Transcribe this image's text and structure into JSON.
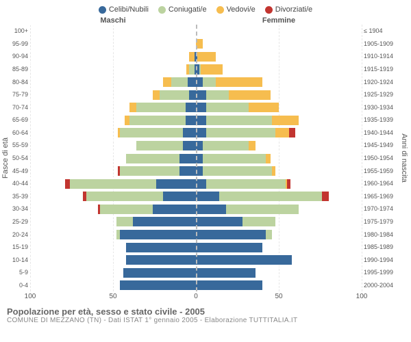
{
  "legend": {
    "items": [
      {
        "label": "Celibi/Nubili",
        "color": "#38699b"
      },
      {
        "label": "Coniugati/e",
        "color": "#bcd3a0"
      },
      {
        "label": "Vedovi/e",
        "color": "#f6bd4f"
      },
      {
        "label": "Divorziati/e",
        "color": "#c23530"
      }
    ]
  },
  "headers": {
    "male": "Maschi",
    "female": "Femmine"
  },
  "axis_labels": {
    "left": "Fasce di età",
    "right": "Anni di nascita"
  },
  "x_axis": {
    "max": 100,
    "ticks": [
      100,
      50,
      0,
      50,
      100
    ]
  },
  "footer": {
    "title": "Popolazione per età, sesso e stato civile - 2005",
    "subtitle": "COMUNE DI MEZZANO (TN) - Dati ISTAT 1° gennaio 2005 - Elaborazione TUTTITALIA.IT"
  },
  "colors": {
    "single": "#38699b",
    "married": "#bcd3a0",
    "widowed": "#f6bd4f",
    "divorced": "#c23530",
    "grid": "#e5e5e5",
    "centerline": "#bbbbbb",
    "background": "#ffffff"
  },
  "chart": {
    "type": "population-pyramid",
    "rows": [
      {
        "age": "100+",
        "year": "≤ 1904",
        "m": {
          "s": 0,
          "m": 0,
          "w": 0,
          "d": 0
        },
        "f": {
          "s": 0,
          "m": 0,
          "w": 0,
          "d": 0
        }
      },
      {
        "age": "95-99",
        "year": "1905-1909",
        "m": {
          "s": 0,
          "m": 0,
          "w": 0,
          "d": 0
        },
        "f": {
          "s": 0,
          "m": 0,
          "w": 4,
          "d": 0
        }
      },
      {
        "age": "90-94",
        "year": "1910-1914",
        "m": {
          "s": 1,
          "m": 0,
          "w": 3,
          "d": 0
        },
        "f": {
          "s": 1,
          "m": 0,
          "w": 11,
          "d": 0
        }
      },
      {
        "age": "85-89",
        "year": "1915-1919",
        "m": {
          "s": 1,
          "m": 3,
          "w": 2,
          "d": 0
        },
        "f": {
          "s": 2,
          "m": 1,
          "w": 13,
          "d": 0
        }
      },
      {
        "age": "80-84",
        "year": "1920-1924",
        "m": {
          "s": 5,
          "m": 10,
          "w": 5,
          "d": 0
        },
        "f": {
          "s": 4,
          "m": 8,
          "w": 28,
          "d": 0
        }
      },
      {
        "age": "75-79",
        "year": "1925-1929",
        "m": {
          "s": 4,
          "m": 18,
          "w": 4,
          "d": 0
        },
        "f": {
          "s": 6,
          "m": 14,
          "w": 25,
          "d": 0
        }
      },
      {
        "age": "70-74",
        "year": "1930-1934",
        "m": {
          "s": 6,
          "m": 30,
          "w": 4,
          "d": 0
        },
        "f": {
          "s": 6,
          "m": 26,
          "w": 18,
          "d": 0
        }
      },
      {
        "age": "65-69",
        "year": "1935-1939",
        "m": {
          "s": 6,
          "m": 34,
          "w": 3,
          "d": 0
        },
        "f": {
          "s": 6,
          "m": 40,
          "w": 16,
          "d": 0
        }
      },
      {
        "age": "60-64",
        "year": "1940-1944",
        "m": {
          "s": 8,
          "m": 38,
          "w": 1,
          "d": 0
        },
        "f": {
          "s": 6,
          "m": 42,
          "w": 8,
          "d": 4
        }
      },
      {
        "age": "55-59",
        "year": "1945-1949",
        "m": {
          "s": 8,
          "m": 28,
          "w": 0,
          "d": 0
        },
        "f": {
          "s": 4,
          "m": 28,
          "w": 4,
          "d": 0
        }
      },
      {
        "age": "50-54",
        "year": "1950-1954",
        "m": {
          "s": 10,
          "m": 32,
          "w": 0,
          "d": 0
        },
        "f": {
          "s": 4,
          "m": 38,
          "w": 3,
          "d": 0
        }
      },
      {
        "age": "45-49",
        "year": "1955-1959",
        "m": {
          "s": 10,
          "m": 36,
          "w": 0,
          "d": 1
        },
        "f": {
          "s": 4,
          "m": 42,
          "w": 2,
          "d": 0
        }
      },
      {
        "age": "40-44",
        "year": "1960-1964",
        "m": {
          "s": 24,
          "m": 52,
          "w": 0,
          "d": 3
        },
        "f": {
          "s": 6,
          "m": 48,
          "w": 1,
          "d": 2
        }
      },
      {
        "age": "35-39",
        "year": "1965-1969",
        "m": {
          "s": 20,
          "m": 46,
          "w": 0,
          "d": 2
        },
        "f": {
          "s": 14,
          "m": 62,
          "w": 0,
          "d": 4
        }
      },
      {
        "age": "30-34",
        "year": "1970-1974",
        "m": {
          "s": 26,
          "m": 32,
          "w": 0,
          "d": 1
        },
        "f": {
          "s": 18,
          "m": 44,
          "w": 0,
          "d": 0
        }
      },
      {
        "age": "25-29",
        "year": "1975-1979",
        "m": {
          "s": 38,
          "m": 10,
          "w": 0,
          "d": 0
        },
        "f": {
          "s": 28,
          "m": 20,
          "w": 0,
          "d": 0
        }
      },
      {
        "age": "20-24",
        "year": "1980-1984",
        "m": {
          "s": 46,
          "m": 2,
          "w": 0,
          "d": 0
        },
        "f": {
          "s": 42,
          "m": 4,
          "w": 0,
          "d": 0
        }
      },
      {
        "age": "15-19",
        "year": "1985-1989",
        "m": {
          "s": 42,
          "m": 0,
          "w": 0,
          "d": 0
        },
        "f": {
          "s": 40,
          "m": 0,
          "w": 0,
          "d": 0
        }
      },
      {
        "age": "10-14",
        "year": "1990-1994",
        "m": {
          "s": 42,
          "m": 0,
          "w": 0,
          "d": 0
        },
        "f": {
          "s": 58,
          "m": 0,
          "w": 0,
          "d": 0
        }
      },
      {
        "age": "5-9",
        "year": "1995-1999",
        "m": {
          "s": 44,
          "m": 0,
          "w": 0,
          "d": 0
        },
        "f": {
          "s": 36,
          "m": 0,
          "w": 0,
          "d": 0
        }
      },
      {
        "age": "0-4",
        "year": "2000-2004",
        "m": {
          "s": 46,
          "m": 0,
          "w": 0,
          "d": 0
        },
        "f": {
          "s": 40,
          "m": 0,
          "w": 0,
          "d": 0
        }
      }
    ]
  }
}
